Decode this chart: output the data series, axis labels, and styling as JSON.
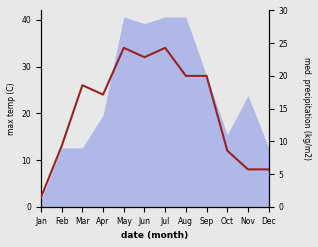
{
  "months": [
    "Jan",
    "Feb",
    "Mar",
    "Apr",
    "May",
    "Jun",
    "Jul",
    "Aug",
    "Sep",
    "Oct",
    "Nov",
    "Dec"
  ],
  "temp": [
    2,
    13,
    26,
    24,
    34,
    32,
    34,
    28,
    28,
    12,
    8,
    8
  ],
  "precip": [
    1,
    9,
    9,
    14,
    29,
    28,
    29,
    29,
    20,
    11,
    17,
    9
  ],
  "temp_color": "#992222",
  "precip_fill_color": "#b0b8e8",
  "xlabel": "date (month)",
  "ylabel_left": "max temp (C)",
  "ylabel_right": "med. precipitation (kg/m2)",
  "ylim_left": [
    0,
    42
  ],
  "ylim_right": [
    0,
    28
  ],
  "yticks_left": [
    0,
    10,
    20,
    30,
    40
  ],
  "yticks_right": [
    0,
    5,
    10,
    15,
    20,
    25,
    30
  ],
  "bg_color": "#ffffff",
  "fig_bg_color": "#e8e8e8"
}
